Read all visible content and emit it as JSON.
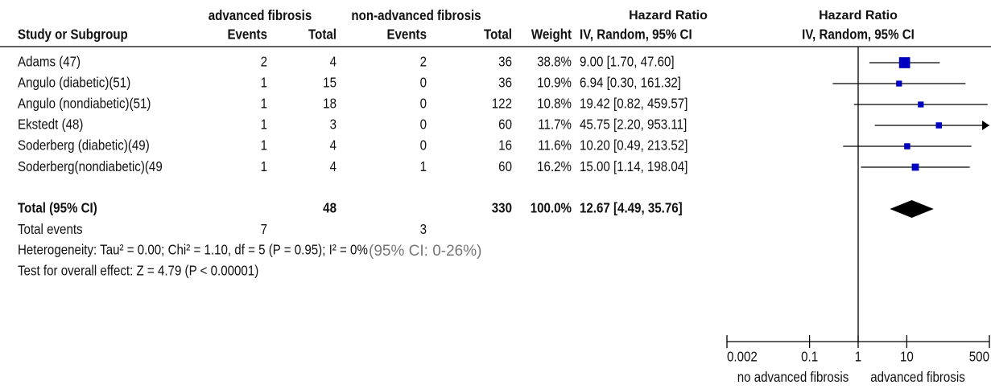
{
  "header": {
    "group1": "advanced fibrosis",
    "group2": "non-advanced fibrosis",
    "effect": "Hazard Ratio",
    "plot_title": "Hazard Ratio"
  },
  "columns": [
    "Study or Subgroup",
    "Events",
    "Total",
    "Events",
    "Total",
    "Weight",
    "IV, Random, 95% CI",
    "IV, Random, 95% CI"
  ],
  "studies": [
    {
      "name": "Adams (47)",
      "e1": 2,
      "n1": 4,
      "e2": 2,
      "n2": 36,
      "weight": 38.8,
      "weight_label": "38.8%",
      "hr": 9.0,
      "ci": [
        1.7,
        47.6
      ],
      "ci_label": "9.00 [1.70, 47.60]"
    },
    {
      "name": "Angulo (diabetic)(51)",
      "e1": 1,
      "n1": 15,
      "e2": 0,
      "n2": 36,
      "weight": 10.9,
      "weight_label": "10.9%",
      "hr": 6.94,
      "ci": [
        0.3,
        161.32
      ],
      "ci_label": "6.94 [0.30, 161.32]"
    },
    {
      "name": "Angulo (nondiabetic)(51)",
      "e1": 1,
      "n1": 18,
      "e2": 0,
      "n2": 122,
      "weight": 10.8,
      "weight_label": "10.8%",
      "hr": 19.42,
      "ci": [
        0.82,
        459.57
      ],
      "ci_label": "19.42 [0.82, 459.57]"
    },
    {
      "name": "Ekstedt (48)",
      "e1": 1,
      "n1": 3,
      "e2": 0,
      "n2": 60,
      "weight": 11.7,
      "weight_label": "11.7%",
      "hr": 45.75,
      "ci": [
        2.2,
        953.11
      ],
      "ci_label": "45.75 [2.20, 953.11]"
    },
    {
      "name": "Soderberg (diabetic)(49)",
      "e1": 1,
      "n1": 4,
      "e2": 0,
      "n2": 16,
      "weight": 11.6,
      "weight_label": "11.6%",
      "hr": 10.2,
      "ci": [
        0.49,
        213.52
      ],
      "ci_label": "10.20 [0.49, 213.52]"
    },
    {
      "name": "Soderberg(nondiabetic)(49",
      "e1": 1,
      "n1": 4,
      "e2": 1,
      "n2": 60,
      "weight": 16.2,
      "weight_label": "16.2%",
      "hr": 15.0,
      "ci": [
        1.14,
        198.04
      ],
      "ci_label": "15.00 [1.14, 198.04]"
    }
  ],
  "total": {
    "name": "Total (95% CI)",
    "n1": 48,
    "n2": 330,
    "weight_label": "100.0%",
    "hr": 12.67,
    "ci": [
      4.49,
      35.76
    ],
    "ci_label": "12.67 [4.49, 35.76]"
  },
  "total_events": {
    "name": "Total events",
    "e1": 7,
    "e2": 3
  },
  "heterogeneity": "Heterogeneity: Tau² = 0.00; Chi² = 1.10, df = 5 (P = 0.95); I² = 0%",
  "heterogeneity_ci": "(95% CI: 0-26%)",
  "overall_effect": "Test for overall effect: Z = 4.79 (P < 0.00001)",
  "plot": {
    "log_scale": true,
    "xlim": [
      0.002,
      500
    ],
    "xticks": [
      0.002,
      0.1,
      1,
      10,
      500
    ],
    "color": "#0000c0",
    "left_label": "no advanced fibrosis",
    "right_label": "advanced fibrosis"
  }
}
